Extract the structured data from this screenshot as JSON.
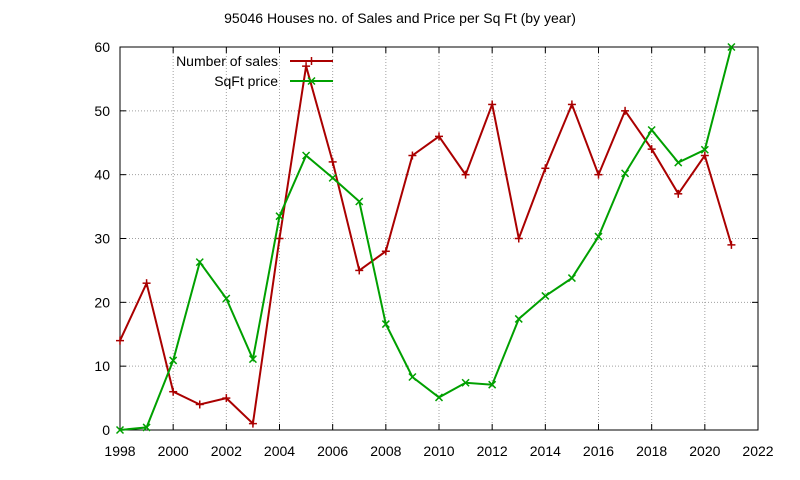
{
  "chart_data": {
    "type": "line",
    "title": "95046 Houses no. of Sales and Price per Sq Ft (by year)",
    "xlabel": "",
    "ylabel": "",
    "xlim": [
      1998,
      2022
    ],
    "ylim": [
      0,
      60
    ],
    "x_ticks": [
      1998,
      2000,
      2002,
      2004,
      2006,
      2008,
      2010,
      2012,
      2014,
      2016,
      2018,
      2020,
      2022
    ],
    "y_ticks": [
      0,
      10,
      20,
      30,
      40,
      50,
      60
    ],
    "grid": true,
    "legend_position": "top-left",
    "x": [
      1998,
      1999,
      2000,
      2001,
      2002,
      2003,
      2004,
      2005,
      2006,
      2007,
      2008,
      2009,
      2010,
      2011,
      2012,
      2013,
      2014,
      2015,
      2016,
      2017,
      2018,
      2019,
      2020,
      2021
    ],
    "series": [
      {
        "name": "Number of sales",
        "color": "#aa0000",
        "marker": "plus",
        "values": [
          14,
          23,
          6,
          4,
          5,
          1,
          30,
          57,
          42,
          25,
          28,
          43,
          46,
          40,
          51,
          30,
          41,
          51,
          40,
          50,
          44,
          37,
          43,
          29
        ]
      },
      {
        "name": "SqFt price",
        "color": "#00a000",
        "marker": "cross",
        "values": [
          0,
          0.4,
          10.9,
          26.3,
          20.6,
          11.1,
          33.5,
          43,
          39.5,
          35.8,
          16.6,
          8.3,
          5.1,
          7.4,
          7.1,
          17.4,
          21,
          23.8,
          30.3,
          40.2,
          47,
          41.9,
          43.9,
          60
        ]
      }
    ]
  }
}
